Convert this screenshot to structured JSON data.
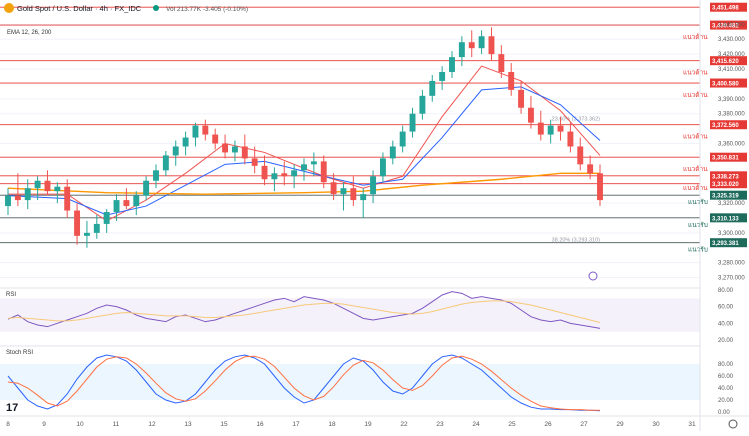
{
  "header": {
    "symbol_title": "Gold Spot / U.S. Dollar · 4h · FX_IDC",
    "volume_text": "Vol 213.77K  -3.405 (-0.10%)",
    "ema_label": "EMA 12, 26, 200",
    "rsi_label": "RSI",
    "stoch_label": "Stoch RSI"
  },
  "colors": {
    "up": "#26a69a",
    "down": "#ef5350",
    "ema_fast": "#ef5350",
    "ema_slow": "#2962ff",
    "ema_long": "#ff9800",
    "level_line": "#e53935",
    "support_line": "#4a5a5a",
    "rsi_line": "#7e57c2",
    "rsi_ma": "#f7c97a",
    "stoch_k": "#2962ff",
    "stoch_d": "#ff7043"
  },
  "chart_data": {
    "type": "candlestick",
    "price_axis": {
      "ticks": [
        "3,440.000",
        "3,430.000",
        "3,420.000",
        "3,410.000",
        "3,390.000",
        "3,380.000",
        "3,360.000",
        "3,320.000",
        "3,300.000",
        "3,280.000",
        "3,270.000"
      ],
      "tick_values": [
        3440,
        3430,
        3420,
        3410,
        3390,
        3380,
        3360,
        3320,
        3300,
        3280,
        3270
      ]
    },
    "x_axis": {
      "labels": [
        "8",
        "9",
        "10",
        "11",
        "12",
        "13",
        "15",
        "16",
        "17",
        "18",
        "19",
        "22",
        "23",
        "24",
        "25",
        "26",
        "27",
        "29",
        "30",
        "31"
      ],
      "positions": [
        0,
        6,
        12,
        18,
        24,
        30,
        36,
        42,
        48,
        54,
        60,
        66,
        72,
        78,
        84,
        90,
        96,
        102,
        108,
        114
      ]
    },
    "levels": [
      {
        "label": "3,451.498",
        "value": 3451.5,
        "text": ""
      },
      {
        "label": "3,439.482",
        "value": 3439.5,
        "text": "แนวต้าน"
      },
      {
        "label": "3,415.620",
        "value": 3415.6,
        "text": "แนวต้าน"
      },
      {
        "label": "3,400.580",
        "value": 3400.6,
        "text": "แนวต้าน"
      },
      {
        "label": "3,372.560",
        "value": 3372.6,
        "text": "แนวต้าน"
      },
      {
        "label": "3,350.831",
        "value": 3350.8,
        "text": "แนวต้าน"
      },
      {
        "label": "3,338.273",
        "value": 3338.3,
        "text": "แนวต้าน"
      },
      {
        "label": "3,333.020",
        "value": 3333.0,
        "text": ""
      }
    ],
    "supports": [
      {
        "label": "3,325.319",
        "value": 3325.3,
        "text": "แนวรับ"
      },
      {
        "label": "3,310.133",
        "value": 3310.1,
        "text": "แนวรับ"
      },
      {
        "label": "3,293.381",
        "value": 3293.4,
        "text": "แนวรับ"
      }
    ],
    "fib_labels": [
      {
        "text": "23.60% (3,373.362)",
        "value": 3375.5
      },
      {
        "text": "38.20% (3,293.310)",
        "value": 3294.3
      }
    ],
    "candles": [
      [
        3318,
        3330,
        3312,
        3325
      ],
      [
        3325,
        3340,
        3318,
        3322
      ],
      [
        3322,
        3336,
        3316,
        3330
      ],
      [
        3330,
        3338,
        3322,
        3335
      ],
      [
        3335,
        3342,
        3325,
        3328
      ],
      [
        3328,
        3334,
        3320,
        3331
      ],
      [
        3331,
        3336,
        3310,
        3315
      ],
      [
        3315,
        3320,
        3292,
        3298
      ],
      [
        3298,
        3308,
        3290,
        3300
      ],
      [
        3300,
        3312,
        3296,
        3306
      ],
      [
        3306,
        3316,
        3300,
        3314
      ],
      [
        3314,
        3326,
        3308,
        3322
      ],
      [
        3322,
        3330,
        3316,
        3318
      ],
      [
        3318,
        3328,
        3312,
        3325
      ],
      [
        3325,
        3338,
        3322,
        3335
      ],
      [
        3335,
        3346,
        3330,
        3342
      ],
      [
        3342,
        3355,
        3338,
        3352
      ],
      [
        3352,
        3362,
        3345,
        3358
      ],
      [
        3358,
        3368,
        3352,
        3364
      ],
      [
        3364,
        3374,
        3358,
        3372
      ],
      [
        3372,
        3376,
        3362,
        3366
      ],
      [
        3366,
        3370,
        3356,
        3360
      ],
      [
        3360,
        3366,
        3350,
        3354
      ],
      [
        3354,
        3362,
        3348,
        3358
      ],
      [
        3358,
        3366,
        3346,
        3350
      ],
      [
        3350,
        3358,
        3340,
        3345
      ],
      [
        3345,
        3352,
        3332,
        3336
      ],
      [
        3336,
        3344,
        3328,
        3340
      ],
      [
        3340,
        3348,
        3332,
        3338
      ],
      [
        3338,
        3346,
        3330,
        3342
      ],
      [
        3342,
        3350,
        3335,
        3346
      ],
      [
        3346,
        3354,
        3338,
        3348
      ],
      [
        3348,
        3352,
        3330,
        3334
      ],
      [
        3334,
        3340,
        3322,
        3326
      ],
      [
        3326,
        3334,
        3315,
        3330
      ],
      [
        3330,
        3338,
        3318,
        3322
      ],
      [
        3322,
        3330,
        3310,
        3326
      ],
      [
        3326,
        3342,
        3320,
        3338
      ],
      [
        3338,
        3354,
        3334,
        3350
      ],
      [
        3350,
        3362,
        3346,
        3358
      ],
      [
        3358,
        3372,
        3354,
        3368
      ],
      [
        3368,
        3384,
        3364,
        3380
      ],
      [
        3380,
        3396,
        3376,
        3392
      ],
      [
        3392,
        3406,
        3388,
        3402
      ],
      [
        3402,
        3412,
        3396,
        3408
      ],
      [
        3408,
        3422,
        3404,
        3418
      ],
      [
        3418,
        3432,
        3412,
        3428
      ],
      [
        3428,
        3436,
        3418,
        3424
      ],
      [
        3424,
        3436,
        3420,
        3432
      ],
      [
        3432,
        3438,
        3416,
        3420
      ],
      [
        3420,
        3426,
        3404,
        3408
      ],
      [
        3408,
        3414,
        3392,
        3396
      ],
      [
        3396,
        3402,
        3380,
        3384
      ],
      [
        3384,
        3392,
        3370,
        3374
      ],
      [
        3374,
        3382,
        3362,
        3366
      ],
      [
        3366,
        3376,
        3360,
        3372
      ],
      [
        3372,
        3378,
        3362,
        3368
      ],
      [
        3368,
        3374,
        3354,
        3358
      ],
      [
        3358,
        3364,
        3342,
        3346
      ],
      [
        3346,
        3352,
        3336,
        3340
      ],
      [
        3340,
        3346,
        3318,
        3322
      ]
    ],
    "ema": [
      {
        "name": "EMA 12",
        "color_key": "ema_fast",
        "points": [
          [
            0,
            3326
          ],
          [
            6,
            3326
          ],
          [
            10,
            3308
          ],
          [
            14,
            3322
          ],
          [
            18,
            3340
          ],
          [
            22,
            3360
          ],
          [
            26,
            3354
          ],
          [
            32,
            3338
          ],
          [
            36,
            3330
          ],
          [
            40,
            3338
          ],
          [
            44,
            3378
          ],
          [
            48,
            3412
          ],
          [
            52,
            3402
          ],
          [
            56,
            3382
          ],
          [
            60,
            3352
          ]
        ]
      },
      {
        "name": "EMA 26",
        "color_key": "ema_slow",
        "points": [
          [
            0,
            3325
          ],
          [
            6,
            3323
          ],
          [
            10,
            3312
          ],
          [
            14,
            3318
          ],
          [
            18,
            3332
          ],
          [
            22,
            3346
          ],
          [
            26,
            3348
          ],
          [
            32,
            3338
          ],
          [
            36,
            3332
          ],
          [
            40,
            3336
          ],
          [
            44,
            3364
          ],
          [
            48,
            3396
          ],
          [
            52,
            3398
          ],
          [
            56,
            3386
          ],
          [
            60,
            3362
          ]
        ]
      },
      {
        "name": "EMA 200",
        "color_key": "ema_long",
        "points": [
          [
            0,
            3330
          ],
          [
            10,
            3327
          ],
          [
            20,
            3326
          ],
          [
            30,
            3327
          ],
          [
            36,
            3328
          ],
          [
            42,
            3332
          ],
          [
            50,
            3336
          ],
          [
            56,
            3340
          ],
          [
            60,
            3340
          ]
        ]
      }
    ],
    "rsi": {
      "label": "RSI",
      "levels": [
        "80.00",
        "60.00",
        "40.00",
        "20.00"
      ],
      "level_values": [
        80,
        60,
        40,
        20
      ],
      "values": [
        45,
        50,
        42,
        38,
        36,
        40,
        44,
        48,
        52,
        58,
        62,
        60,
        56,
        50,
        46,
        44,
        42,
        48,
        50,
        46,
        42,
        44,
        48,
        52,
        56,
        60,
        64,
        68,
        70,
        66,
        72,
        70,
        68,
        64,
        58,
        52,
        46,
        44,
        46,
        48,
        50,
        52,
        58,
        66,
        74,
        78,
        76,
        70,
        72,
        70,
        68,
        64,
        56,
        48,
        44,
        42,
        44,
        40,
        38,
        36,
        34
      ],
      "ma": [
        46,
        47,
        46,
        45,
        44,
        43,
        43,
        44,
        46,
        48,
        50,
        52,
        53,
        52,
        51,
        50,
        49,
        49,
        49,
        48,
        47,
        47,
        48,
        49,
        50,
        52,
        54,
        56,
        58,
        60,
        62,
        63,
        64,
        64,
        63,
        61,
        59,
        57,
        55,
        53,
        52,
        51,
        52,
        54,
        57,
        60,
        63,
        65,
        66,
        67,
        67,
        66,
        64,
        62,
        59,
        56,
        53,
        50,
        47,
        44,
        41
      ]
    },
    "stoch_rsi": {
      "label": "Stoch RSI",
      "levels": [
        "80.00",
        "60.00",
        "40.00",
        "20.00",
        "0.00"
      ],
      "level_values": [
        80,
        60,
        40,
        20,
        0
      ],
      "k": [
        60,
        40,
        20,
        10,
        5,
        12,
        30,
        55,
        75,
        90,
        95,
        92,
        85,
        70,
        50,
        30,
        20,
        15,
        18,
        30,
        50,
        70,
        85,
        92,
        95,
        90,
        80,
        60,
        40,
        25,
        15,
        20,
        40,
        60,
        80,
        90,
        85,
        70,
        50,
        35,
        30,
        40,
        60,
        80,
        92,
        95,
        90,
        80,
        70,
        55,
        40,
        25,
        15,
        8,
        5,
        5,
        4,
        4,
        3,
        3,
        2
      ],
      "d": [
        50,
        48,
        40,
        28,
        15,
        10,
        18,
        35,
        55,
        75,
        88,
        92,
        90,
        80,
        65,
        48,
        32,
        22,
        18,
        22,
        35,
        52,
        70,
        84,
        92,
        93,
        88,
        76,
        58,
        40,
        27,
        20,
        26,
        42,
        62,
        78,
        86,
        82,
        70,
        54,
        40,
        36,
        44,
        60,
        78,
        90,
        93,
        88,
        80,
        68,
        54,
        40,
        28,
        18,
        10,
        7,
        5,
        4,
        4,
        3,
        3
      ]
    }
  }
}
